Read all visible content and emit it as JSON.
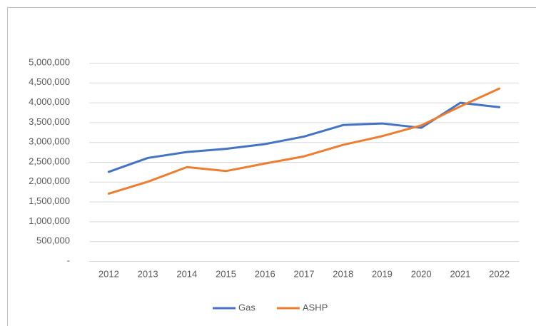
{
  "chart_data": {
    "type": "line",
    "categories": [
      "2012",
      "2013",
      "2014",
      "2015",
      "2016",
      "2017",
      "2018",
      "2019",
      "2020",
      "2021",
      "2022"
    ],
    "series": [
      {
        "name": "Gas",
        "color": "#4472c4",
        "values": [
          2250000,
          2600000,
          2750000,
          2830000,
          2950000,
          3140000,
          3430000,
          3470000,
          3360000,
          3990000,
          3880000
        ]
      },
      {
        "name": "ASHP",
        "color": "#ed7d31",
        "values": [
          1700000,
          2000000,
          2370000,
          2270000,
          2460000,
          2640000,
          2930000,
          3150000,
          3420000,
          3900000,
          4350000
        ]
      }
    ],
    "ylim": [
      0,
      5000000
    ],
    "yticks": [
      {
        "value": 0,
        "label": "-"
      },
      {
        "value": 500000,
        "label": "500,000"
      },
      {
        "value": 1000000,
        "label": "1,000,000"
      },
      {
        "value": 1500000,
        "label": "1,500,000"
      },
      {
        "value": 2000000,
        "label": "2,000,000"
      },
      {
        "value": 2500000,
        "label": "2,500,000"
      },
      {
        "value": 3000000,
        "label": "3,000,000"
      },
      {
        "value": 3500000,
        "label": "3,500,000"
      },
      {
        "value": 4000000,
        "label": "4,000,000"
      },
      {
        "value": 4500000,
        "label": "4,500,000"
      },
      {
        "value": 5000000,
        "label": "5,000,000"
      }
    ],
    "grid": true,
    "legend": "bottom"
  }
}
